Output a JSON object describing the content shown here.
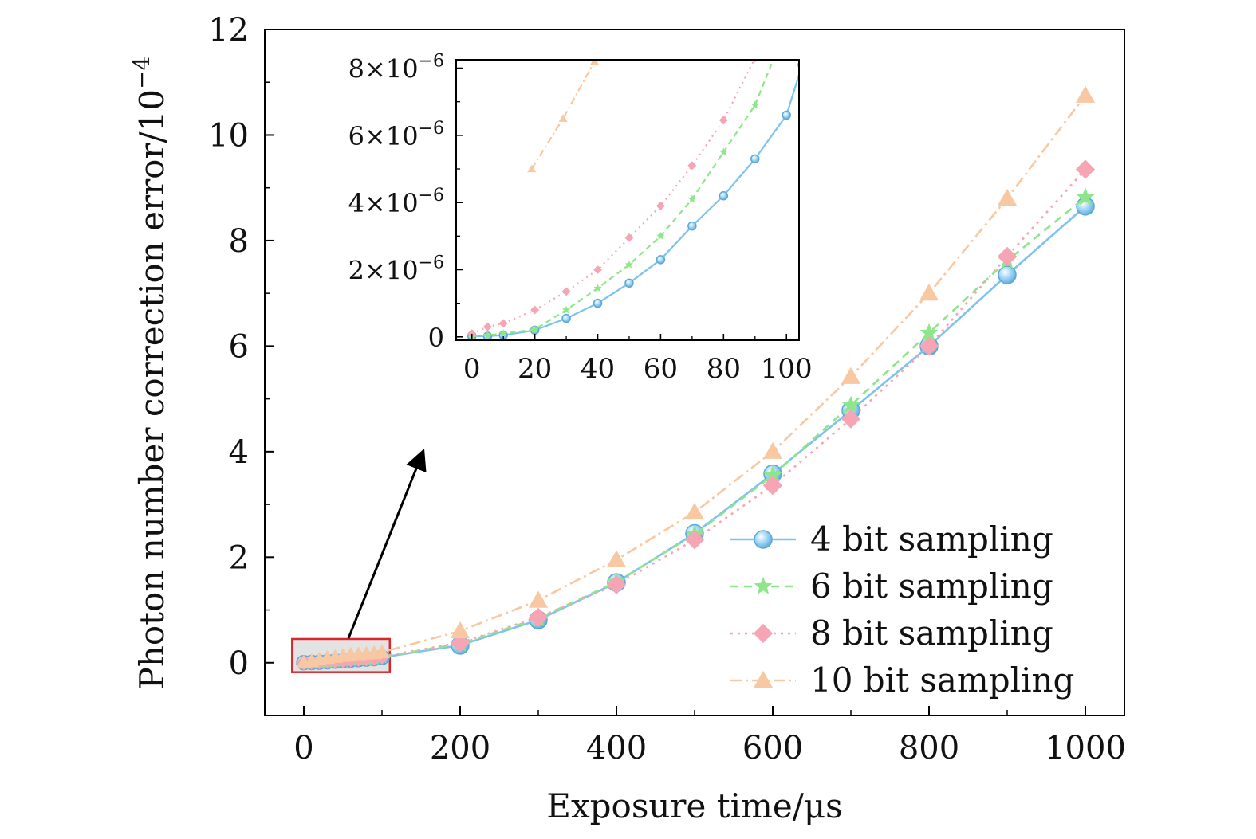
{
  "chart_data": [
    {
      "id": "main",
      "type": "line",
      "title": "",
      "xlabel": "Exposure time/μs",
      "ylabel": "Photon number correction error/10",
      "ylabel_exponent": "−4",
      "xlim": [
        -50,
        1050
      ],
      "ylim": [
        -1,
        12
      ],
      "xticks": [
        0,
        200,
        400,
        600,
        800,
        1000
      ],
      "xtick_labels": [
        "0",
        "200",
        "400",
        "600",
        "800",
        "1000"
      ],
      "yticks": [
        0,
        2,
        4,
        6,
        8,
        10,
        12
      ],
      "ytick_labels": [
        "0",
        "2",
        "4",
        "6",
        "8",
        "10",
        "12"
      ],
      "legend_position": "lower-right",
      "x": [
        0,
        10,
        20,
        30,
        40,
        50,
        60,
        70,
        80,
        90,
        100,
        200,
        300,
        400,
        500,
        600,
        700,
        800,
        900,
        1000
      ],
      "series": [
        {
          "key": "s4",
          "name": "4 bit sampling",
          "color": "#7ec3ee",
          "dash": "",
          "marker": "circle",
          "values": [
            0,
            0.005,
            0.01,
            0.02,
            0.03,
            0.04,
            0.05,
            0.06,
            0.07,
            0.08,
            0.1,
            0.33,
            0.81,
            1.52,
            2.45,
            3.58,
            4.78,
            6.0,
            7.35,
            8.65
          ]
        },
        {
          "key": "s6",
          "name": "6 bit sampling",
          "color": "#8ee68a",
          "dash": "10,7",
          "marker": "star",
          "values": [
            0,
            0.005,
            0.01,
            0.02,
            0.03,
            0.04,
            0.05,
            0.06,
            0.07,
            0.08,
            0.11,
            0.36,
            0.84,
            1.53,
            2.43,
            3.55,
            4.88,
            6.25,
            7.62,
            8.82
          ]
        },
        {
          "key": "s8",
          "name": "8 bit sampling",
          "color": "#f5a5b3",
          "dash": "3,6",
          "marker": "diamond",
          "values": [
            0,
            0.01,
            0.02,
            0.03,
            0.04,
            0.05,
            0.06,
            0.07,
            0.08,
            0.09,
            0.12,
            0.38,
            0.86,
            1.48,
            2.33,
            3.36,
            4.62,
            6.0,
            7.7,
            9.35
          ]
        },
        {
          "key": "s10",
          "name": "10 bit sampling",
          "color": "#f7c8a1",
          "dash": "14,5,3,5",
          "marker": "triangle",
          "values": [
            0,
            0.03,
            0.06,
            0.09,
            0.11,
            0.13,
            0.15,
            0.16,
            0.17,
            0.18,
            0.2,
            0.6,
            1.18,
            1.95,
            2.85,
            4.0,
            5.42,
            7.0,
            8.8,
            10.75
          ]
        }
      ],
      "zoom_box": {
        "x_range": [
          -15,
          110
        ],
        "y_range": [
          -0.18,
          0.45
        ]
      }
    },
    {
      "id": "inset",
      "type": "line",
      "xlim": [
        -5,
        104
      ],
      "ylim": [
        -0.1,
        8.25
      ],
      "xticks": [
        0,
        20,
        40,
        60,
        80,
        100
      ],
      "xtick_labels": [
        "0",
        "20",
        "40",
        "60",
        "80",
        "100"
      ],
      "yticks": [
        0,
        2,
        4,
        6,
        8
      ],
      "ytick_labels": [
        {
          "mantissa": "",
          "exponent": "",
          "zero": "0"
        },
        {
          "mantissa": "2",
          "base": "×10",
          "exponent": "−6"
        },
        {
          "mantissa": "4",
          "base": "×10",
          "exponent": "−6"
        },
        {
          "mantissa": "6",
          "base": "×10",
          "exponent": "−6"
        },
        {
          "mantissa": "8",
          "base": "×10",
          "exponent": "−6"
        }
      ],
      "y_unit": "×10^-6",
      "series": [
        {
          "key": "s4",
          "x": [
            0,
            5,
            10,
            20,
            30,
            40,
            50,
            60,
            70,
            80,
            90,
            100,
            105
          ],
          "values": [
            0.02,
            0.02,
            0.05,
            0.2,
            0.55,
            1.0,
            1.6,
            2.3,
            3.3,
            4.2,
            5.3,
            6.6,
            8.1
          ]
        },
        {
          "key": "s6",
          "x": [
            0,
            5,
            10,
            20,
            30,
            40,
            50,
            60,
            70,
            80,
            90,
            96
          ],
          "values": [
            0.02,
            0.05,
            0.1,
            0.22,
            0.8,
            1.45,
            2.15,
            3.0,
            4.1,
            5.5,
            6.9,
            8.3
          ]
        },
        {
          "key": "s8",
          "x": [
            0,
            5,
            10,
            20,
            30,
            40,
            50,
            60,
            70,
            80,
            90
          ],
          "values": [
            0.1,
            0.3,
            0.4,
            0.8,
            1.35,
            2.0,
            2.95,
            3.9,
            5.1,
            6.45,
            8.3
          ]
        },
        {
          "key": "s10",
          "x": [
            19,
            29,
            39,
            42
          ],
          "values": [
            5.0,
            6.5,
            8.2,
            8.6
          ]
        }
      ]
    }
  ]
}
